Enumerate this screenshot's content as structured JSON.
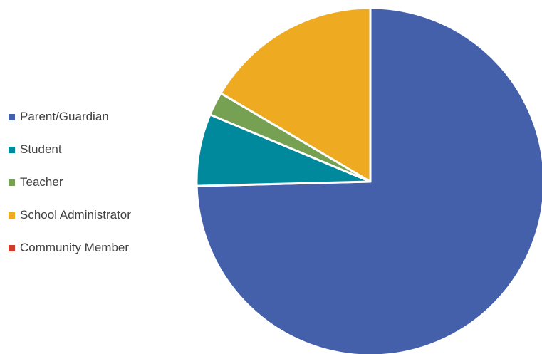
{
  "chart_data": {
    "type": "pie",
    "title": "",
    "legend_position": "left",
    "slices": [
      {
        "label": "Parent/Guardian",
        "value": 74.6,
        "color": "#4560AA"
      },
      {
        "label": "Student",
        "value": 6.7,
        "color": "#00899C"
      },
      {
        "label": "Teacher",
        "value": 2.2,
        "color": "#76A052"
      },
      {
        "label": "School Administrator",
        "value": 16.5,
        "color": "#EEAB22"
      },
      {
        "label": "Community Member",
        "value": 0.0,
        "color": "#CF3A2B"
      }
    ]
  }
}
